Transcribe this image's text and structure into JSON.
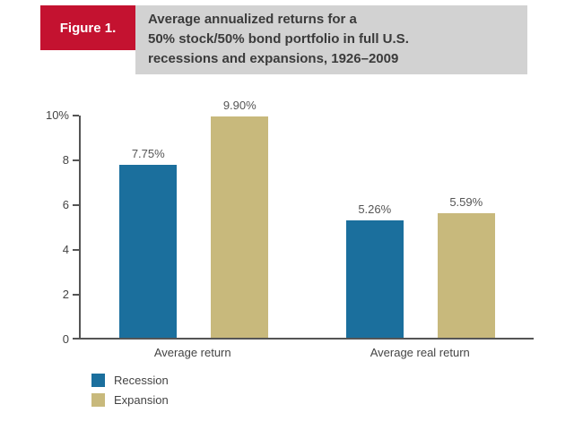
{
  "figure": {
    "label": "Figure 1.",
    "title_lines": [
      "Average annualized returns for a",
      "50% stock/50% bond portfolio in full U.S.",
      "recessions and expansions, 1926–2009"
    ]
  },
  "colors": {
    "figure_label_bg": "#c41230",
    "title_bg": "#d2d2d2",
    "axis": "#555555"
  },
  "chart_data": {
    "type": "bar",
    "title": "Average annualized returns for a 50% stock/50% bond portfolio in full U.S. recessions and expansions, 1926–2009",
    "categories": [
      "Average return",
      "Average real return"
    ],
    "series": [
      {
        "name": "Recession",
        "color": "#1b6f9d",
        "values": [
          7.75,
          5.26
        ],
        "labels": [
          "7.75%",
          "5.26%"
        ]
      },
      {
        "name": "Expansion",
        "color": "#c8b97c",
        "values": [
          9.9,
          5.59
        ],
        "labels": [
          "9.90%",
          "5.59%"
        ]
      }
    ],
    "xlabel": "",
    "ylabel": "",
    "ylim": [
      0,
      10
    ],
    "yticks": [
      {
        "value": 10,
        "label": "10%"
      },
      {
        "value": 8,
        "label": "8"
      },
      {
        "value": 6,
        "label": "6"
      },
      {
        "value": 4,
        "label": "4"
      },
      {
        "value": 2,
        "label": "2"
      },
      {
        "value": 0,
        "label": "0"
      }
    ],
    "grid": false,
    "legend_position": "bottom-left"
  }
}
